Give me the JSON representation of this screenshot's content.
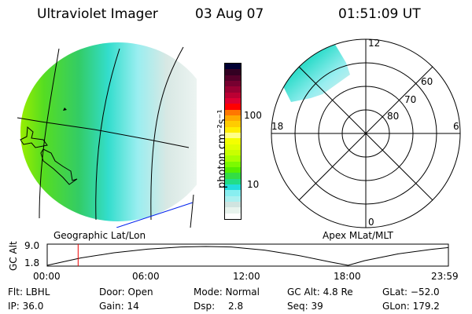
{
  "header": {
    "instrument": "Ultraviolet Imager",
    "date": "03 Aug 07",
    "time": "01:51:09 UT"
  },
  "colorbar": {
    "label": "photon cm⁻²s⁻¹",
    "ticks": [
      "100",
      "10"
    ],
    "colors": [
      "#000033",
      "#330022",
      "#55002a",
      "#770030",
      "#990033",
      "#bb0033",
      "#dd0033",
      "#ff0000",
      "#ff7700",
      "#ffaa00",
      "#ffcc00",
      "#ffee00",
      "#ffff88",
      "#f4ff00",
      "#e0ff00",
      "#c8ff00",
      "#a8ff00",
      "#7cfa00",
      "#55ee00",
      "#33dd44",
      "#22dd88",
      "#22dddd",
      "#88eef0",
      "#aaf0f0",
      "#d0e4e0",
      "#e8f4ee",
      "#ffffff"
    ]
  },
  "map_left": {
    "label": "Geographic Lat/Lon"
  },
  "polar": {
    "label": "Apex MLat/MLT",
    "mlt_labels": {
      "top": "12",
      "left": "18",
      "right": "6",
      "bottom": "0"
    },
    "lat_labels": [
      "60",
      "70",
      "80"
    ]
  },
  "chart_data": {
    "type": "line",
    "ylabel": "GC Alt",
    "yticks": [
      "9.0",
      "1.8"
    ],
    "ylim": [
      1.8,
      9.0
    ],
    "xticks": [
      "00:00",
      "06:00",
      "12:00",
      "18:00",
      "23:59"
    ],
    "x_hours": [
      0,
      2,
      4,
      6,
      8,
      9.5,
      11,
      13,
      15,
      17,
      18,
      19,
      21,
      23,
      24
    ],
    "altitude": [
      1.8,
      4.6,
      6.6,
      8.0,
      8.8,
      9.0,
      8.8,
      7.6,
      5.6,
      3.0,
      1.8,
      3.6,
      6.2,
      7.9,
      8.6
    ],
    "current_time_hours": 1.85
  },
  "status": {
    "flt": "Flt: LBHL",
    "ip": "IP: 36.0",
    "door": "Door: Open",
    "gain": "Gain: 14",
    "mode": "Mode: Normal",
    "dsp_label": "Dsp:",
    "dsp_value": "2.8",
    "gcalt": "GC Alt: 4.8 Re",
    "seq": "Seq: 39",
    "glat": "GLat: −52.0",
    "glon": "GLon: 179.2"
  }
}
